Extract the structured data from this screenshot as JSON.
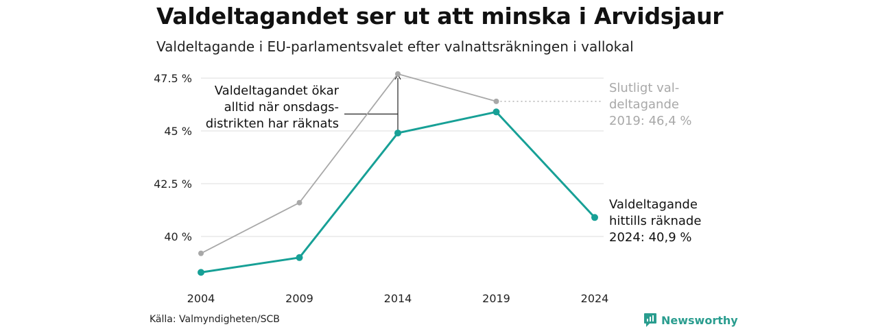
{
  "title": "Valdeltagandet ser ut att minska i Arvidsjaur",
  "subtitle": "Valdeltagande i EU-parlamentsvalet efter valnattsräkningen i vallokal",
  "source": "Källa: Valmyndigheten/SCB",
  "brand": {
    "name": "Newsworthy",
    "icon": "newsworthy-logo-icon",
    "color": "#2a9d8f"
  },
  "chart_data": {
    "type": "line",
    "x": [
      "2004",
      "2009",
      "2014",
      "2019",
      "2024"
    ],
    "series": [
      {
        "name": "Slutligt valdeltagande",
        "color": "#a8a8a8",
        "values": [
          39.2,
          41.6,
          47.7,
          46.4,
          null
        ]
      },
      {
        "name": "Valdeltagande hittills räknade",
        "color": "#17a096",
        "values": [
          38.3,
          39.0,
          44.9,
          45.9,
          40.9
        ]
      }
    ],
    "ylim": [
      38.0,
      48.0
    ],
    "yticks": [
      40,
      42.5,
      45,
      47.5
    ],
    "ytick_labels": [
      "40 %",
      "42.5 %",
      "45 %",
      "47.5 %"
    ],
    "grid": true,
    "annotations": {
      "final": {
        "lines": [
          "Slutligt val-",
          "deltagande",
          "2019: 46,4 %"
        ]
      },
      "current": {
        "lines": [
          "Valdeltagande",
          "hittills räknade",
          "2024: 40,9 %"
        ]
      },
      "note": {
        "lines": [
          "Valdeltagandet ökar",
          "alltid när onsdags-",
          "distrikten har räknats"
        ]
      }
    }
  }
}
